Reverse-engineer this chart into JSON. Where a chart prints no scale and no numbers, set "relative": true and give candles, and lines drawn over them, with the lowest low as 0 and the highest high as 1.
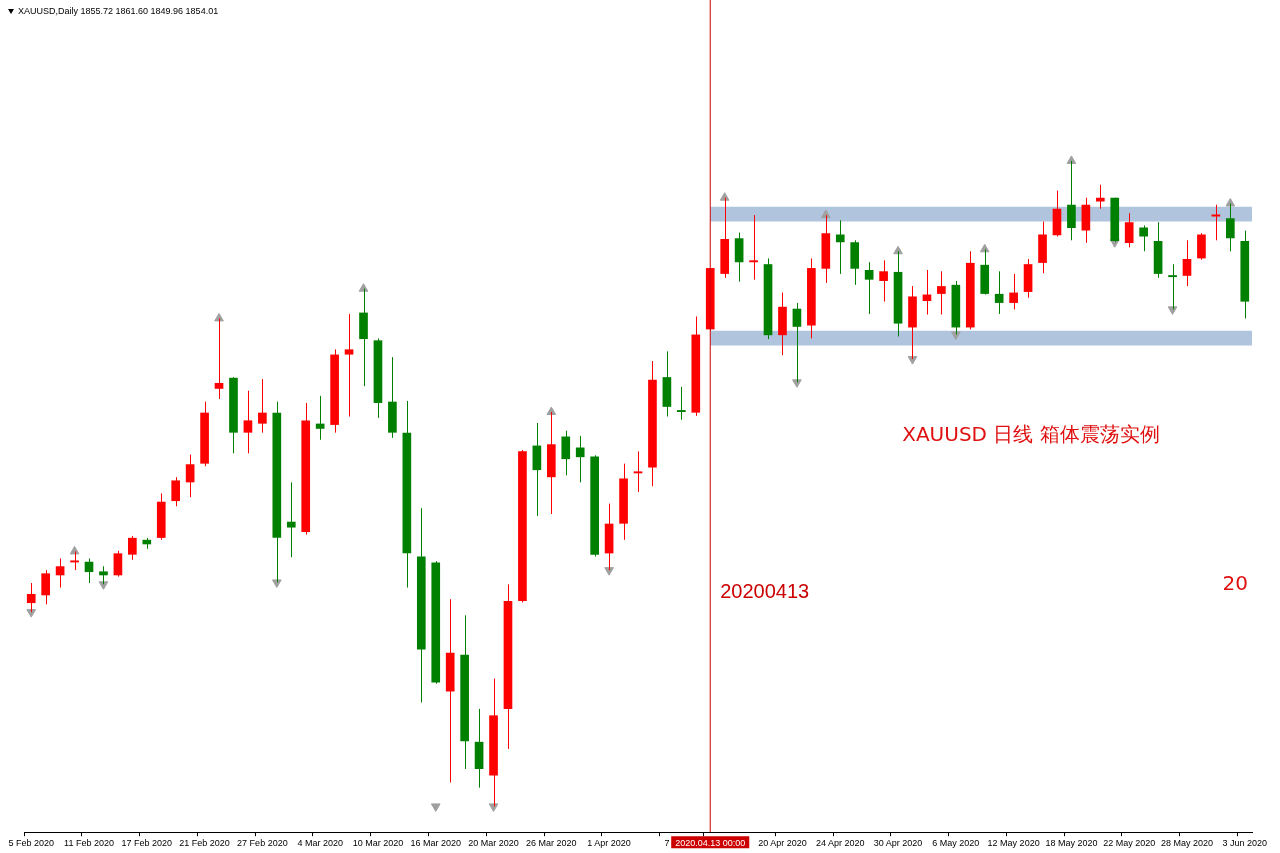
{
  "chart_data": {
    "type": "candlestick",
    "title": "XAUUSD,Daily 1855.72 1861.60 1849.96 1854.01",
    "relative": true,
    "categories": [
      "5 Feb 2020",
      null,
      null,
      null,
      "11 Feb 2020",
      null,
      null,
      null,
      "17 Feb 2020",
      null,
      null,
      null,
      "21 Feb 2020",
      null,
      null,
      null,
      "27 Feb 2020",
      null,
      null,
      null,
      "4 Mar 2020",
      null,
      null,
      null,
      "10 Mar 2020",
      null,
      null,
      null,
      "16 Mar 2020",
      null,
      null,
      null,
      "20 Mar 2020",
      null,
      null,
      null,
      "26 Mar 2020",
      null,
      null,
      null,
      "1 Apr 2020",
      null,
      null,
      null,
      "7",
      null,
      null,
      "2020.04.13 00:00",
      null,
      null,
      null,
      null,
      "20 Apr 2020",
      null,
      null,
      null,
      "24 Apr 2020",
      null,
      null,
      null,
      "30 Apr 2020",
      null,
      null,
      null,
      "6 May 2020",
      null,
      null,
      null,
      "12 May 2020",
      null,
      null,
      null,
      "18 May 2020",
      null,
      null,
      null,
      "22 May 2020",
      null,
      null,
      null,
      "28 May 2020",
      null,
      null,
      null,
      "3 Jun 2020"
    ],
    "ohlc": [
      [
        0.315,
        0.346,
        0.301,
        0.329
      ],
      [
        0.327,
        0.366,
        0.313,
        0.361
      ],
      [
        0.358,
        0.384,
        0.339,
        0.372
      ],
      [
        0.378,
        0.395,
        0.366,
        0.381
      ],
      [
        0.379,
        0.384,
        0.346,
        0.363
      ],
      [
        0.364,
        0.372,
        0.344,
        0.358
      ],
      [
        0.358,
        0.396,
        0.356,
        0.392
      ],
      [
        0.39,
        0.419,
        0.382,
        0.416
      ],
      [
        0.413,
        0.416,
        0.399,
        0.406
      ],
      [
        0.416,
        0.485,
        0.413,
        0.472
      ],
      [
        0.473,
        0.51,
        0.465,
        0.505
      ],
      [
        0.502,
        0.545,
        0.479,
        0.53
      ],
      [
        0.531,
        0.627,
        0.527,
        0.61
      ],
      [
        0.647,
        0.756,
        0.631,
        0.656
      ],
      [
        0.664,
        0.665,
        0.547,
        0.579
      ],
      [
        0.579,
        0.644,
        0.547,
        0.598
      ],
      [
        0.593,
        0.662,
        0.579,
        0.61
      ],
      [
        0.61,
        0.627,
        0.347,
        0.416
      ],
      [
        0.441,
        0.502,
        0.386,
        0.432
      ],
      [
        0.425,
        0.625,
        0.421,
        0.598
      ],
      [
        0.593,
        0.636,
        0.568,
        0.585
      ],
      [
        0.591,
        0.708,
        0.579,
        0.7
      ],
      [
        0.7,
        0.763,
        0.604,
        0.708
      ],
      [
        0.765,
        0.802,
        0.651,
        0.724
      ],
      [
        0.722,
        0.725,
        0.602,
        0.625
      ],
      [
        0.627,
        0.696,
        0.571,
        0.579
      ],
      [
        0.579,
        0.628,
        0.339,
        0.392
      ],
      [
        0.387,
        0.462,
        0.161,
        0.243
      ],
      [
        0.378,
        0.38,
        0.19,
        0.192
      ],
      [
        0.178,
        0.321,
        0.037,
        0.238
      ],
      [
        0.235,
        0.296,
        0.058,
        0.101
      ],
      [
        0.1,
        0.151,
        0.029,
        0.058
      ],
      [
        0.048,
        0.198,
        0,
        0.141
      ],
      [
        0.151,
        0.344,
        0.089,
        0.318
      ],
      [
        0.318,
        0.552,
        0.316,
        0.55
      ],
      [
        0.559,
        0.594,
        0.45,
        0.521
      ],
      [
        0.51,
        0.611,
        0.453,
        0.561
      ],
      [
        0.573,
        0.582,
        0.513,
        0.538
      ],
      [
        0.556,
        0.574,
        0.502,
        0.541
      ],
      [
        0.542,
        0.544,
        0.387,
        0.39
      ],
      [
        0.392,
        0.469,
        0.366,
        0.438
      ],
      [
        0.438,
        0.531,
        0.413,
        0.508
      ],
      [
        0.516,
        0.55,
        0.487,
        0.519
      ],
      [
        0.525,
        0.69,
        0.496,
        0.661
      ],
      [
        0.665,
        0.705,
        0.604,
        0.619
      ],
      [
        0.614,
        0.65,
        0.599,
        0.611
      ],
      [
        0.61,
        0.759,
        0.605,
        0.731
      ],
      [
        0.739,
        0.834,
        0.737,
        0.834
      ],
      [
        0.825,
        0.943,
        0.819,
        0.879
      ],
      [
        0.88,
        0.889,
        0.813,
        0.843
      ],
      [
        0.843,
        0.916,
        0.816,
        0.846
      ],
      [
        0.84,
        0.849,
        0.724,
        0.73
      ],
      [
        0.73,
        0.796,
        0.699,
        0.774
      ],
      [
        0.771,
        0.78,
        0.657,
        0.743
      ],
      [
        0.745,
        0.849,
        0.725,
        0.834
      ],
      [
        0.833,
        0.916,
        0.811,
        0.888
      ],
      [
        0.886,
        0.908,
        0.825,
        0.874
      ],
      [
        0.874,
        0.877,
        0.808,
        0.833
      ],
      [
        0.831,
        0.843,
        0.763,
        0.816
      ],
      [
        0.814,
        0.846,
        0.782,
        0.829
      ],
      [
        0.828,
        0.86,
        0.728,
        0.748
      ],
      [
        0.742,
        0.806,
        0.693,
        0.79
      ],
      [
        0.783,
        0.831,
        0.762,
        0.793
      ],
      [
        0.794,
        0.829,
        0.762,
        0.806
      ],
      [
        0.808,
        0.814,
        0.731,
        0.742
      ],
      [
        0.742,
        0.86,
        0.739,
        0.842
      ],
      [
        0.839,
        0.863,
        0.793,
        0.794
      ],
      [
        0.794,
        0.829,
        0.763,
        0.78
      ],
      [
        0.78,
        0.825,
        0.77,
        0.796
      ],
      [
        0.797,
        0.848,
        0.788,
        0.84
      ],
      [
        0.842,
        0.906,
        0.826,
        0.886
      ],
      [
        0.885,
        0.954,
        0.883,
        0.926
      ],
      [
        0.932,
        1,
        0.877,
        0.896
      ],
      [
        0.892,
        0.943,
        0.873,
        0.932
      ],
      [
        0.937,
        0.963,
        0.926,
        0.943
      ],
      [
        0.943,
        0.943,
        0.874,
        0.876
      ],
      [
        0.873,
        0.919,
        0.866,
        0.905
      ],
      [
        0.897,
        0.9,
        0.86,
        0.883
      ],
      [
        0.876,
        0.905,
        0.819,
        0.825
      ],
      [
        0.823,
        0.84,
        0.77,
        0.82
      ],
      [
        0.822,
        0.877,
        0.806,
        0.848
      ],
      [
        0.849,
        0.888,
        0.847,
        0.886
      ],
      [
        0.914,
        0.932,
        0.877,
        0.917
      ],
      [
        0.911,
        0.934,
        0.86,
        0.88
      ],
      [
        0.876,
        0.892,
        0.756,
        0.782
      ]
    ],
    "colors": [
      "#ff0000",
      "#ff0000",
      "#ff0000",
      "#ff0000",
      "#008000",
      "#008000",
      "#ff0000",
      "#ff0000",
      "#008000",
      "#ff0000",
      "#ff0000",
      "#ff0000",
      "#ff0000",
      "#ff0000",
      "#008000",
      "#ff0000",
      "#ff0000",
      "#008000",
      "#008000",
      "#ff0000",
      "#008000",
      "#ff0000",
      "#ff0000",
      "#008000",
      "#008000",
      "#008000",
      "#008000",
      "#008000",
      "#008000",
      "#ff0000",
      "#008000",
      "#008000",
      "#ff0000",
      "#ff0000",
      "#ff0000",
      "#008000",
      "#ff0000",
      "#008000",
      "#008000",
      "#008000",
      "#ff0000",
      "#ff0000",
      "#ff0000",
      "#ff0000",
      "#008000",
      "#008000",
      "#ff0000",
      "#ff0000",
      "#ff0000",
      "#008000",
      "#ff0000",
      "#008000",
      "#ff0000",
      "#008000",
      "#ff0000",
      "#ff0000",
      "#008000",
      "#008000",
      "#008000",
      "#ff0000",
      "#008000",
      "#ff0000",
      "#ff0000",
      "#ff0000",
      "#008000",
      "#ff0000",
      "#008000",
      "#008000",
      "#ff0000",
      "#ff0000",
      "#ff0000",
      "#ff0000",
      "#008000",
      "#ff0000",
      "#ff0000",
      "#008000",
      "#ff0000",
      "#008000",
      "#008000",
      "#008000",
      "#ff0000",
      "#ff0000",
      "#ff0000",
      "#008000",
      "#008000"
    ],
    "series": [
      {
        "type": "scatter",
        "marker": "triangle",
        "color": "#a0a0a0",
        "values": [
          null,
          null,
          null,
          0.395,
          null,
          null,
          null,
          null,
          null,
          null,
          null,
          null,
          null,
          0.756,
          null,
          null,
          null,
          null,
          null,
          null,
          null,
          null,
          null,
          0.802,
          null,
          null,
          null,
          null,
          null,
          null,
          null,
          null,
          null,
          null,
          null,
          null,
          0.611,
          null,
          null,
          null,
          null,
          null,
          null,
          null,
          null,
          null,
          null,
          null,
          0.943,
          null,
          null,
          null,
          null,
          null,
          null,
          0.916,
          null,
          null,
          null,
          null,
          0.86,
          null,
          null,
          null,
          null,
          null,
          0.863,
          null,
          null,
          null,
          null,
          null,
          1,
          null,
          null,
          null,
          null,
          null,
          null,
          null,
          null,
          null,
          null,
          0.934,
          null
        ]
      },
      {
        "type": "scatter",
        "marker": "triangle",
        "color": "#a0a0a0",
        "values": [
          0.301,
          null,
          null,
          null,
          null,
          0.344,
          null,
          null,
          null,
          null,
          null,
          null,
          null,
          null,
          null,
          null,
          null,
          0.347,
          null,
          null,
          null,
          null,
          null,
          null,
          null,
          null,
          null,
          null,
          0,
          null,
          null,
          null,
          0,
          null,
          null,
          null,
          null,
          null,
          null,
          null,
          0.366,
          null,
          null,
          null,
          null,
          null,
          null,
          null,
          null,
          null,
          null,
          null,
          null,
          0.657,
          null,
          null,
          null,
          null,
          null,
          null,
          null,
          0.693,
          null,
          null,
          0.731,
          null,
          null,
          null,
          null,
          null,
          null,
          null,
          null,
          null,
          null,
          0.874,
          null,
          null,
          null,
          0.77,
          null,
          null,
          null,
          null,
          null
        ]
      }
    ],
    "ref_lines": [
      {
        "axis": "x",
        "value": "2020.04.13 00:00",
        "label": "20200413",
        "color": "#cc0000"
      }
    ],
    "bands": [
      {
        "axis": "y",
        "from": 0.906,
        "to": 0.929,
        "color": "#b0c4de"
      },
      {
        "axis": "y",
        "from": 0.714,
        "to": 0.737,
        "color": "#b0c4de"
      }
    ],
    "annotations": [
      "XAUUSD 日线 箱体震荡实例",
      "20"
    ]
  }
}
